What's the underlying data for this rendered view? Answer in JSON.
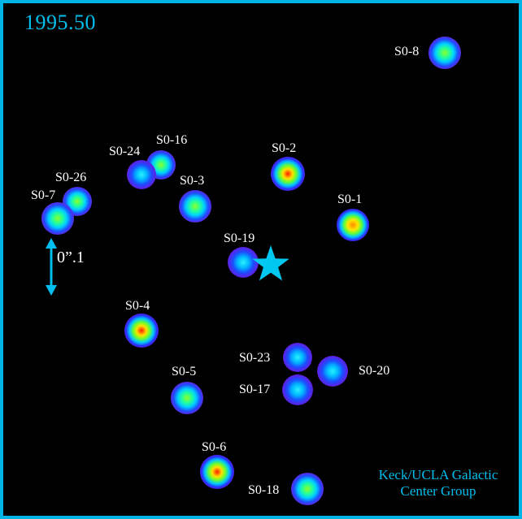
{
  "epoch": "1995.50",
  "credit": {
    "line1": "Keck/UCLA Galactic",
    "line2": "Center Group"
  },
  "scale_bar_label": "0”.1",
  "colors": {
    "frame": "#00b4e6",
    "text_cyan": "#00bfef",
    "label": "#ffffff",
    "black_hole_marker": "#00c8f0"
  },
  "black_hole_marker_icon": "star-icon",
  "stars": [
    {
      "name": "S0-8",
      "palette": "green"
    },
    {
      "name": "S0-16",
      "palette": "green"
    },
    {
      "name": "S0-24",
      "palette": "blue"
    },
    {
      "name": "S0-26",
      "palette": "green"
    },
    {
      "name": "S0-7",
      "palette": "green"
    },
    {
      "name": "S0-3",
      "palette": "green"
    },
    {
      "name": "S0-2",
      "palette": "red"
    },
    {
      "name": "S0-1",
      "palette": "yellow"
    },
    {
      "name": "S0-19",
      "palette": "blue"
    },
    {
      "name": "S0-4",
      "palette": "red"
    },
    {
      "name": "S0-23",
      "palette": "blue"
    },
    {
      "name": "S0-20",
      "palette": "blue"
    },
    {
      "name": "S0-17",
      "palette": "blue"
    },
    {
      "name": "S0-5",
      "palette": "green"
    },
    {
      "name": "S0-6",
      "palette": "red"
    },
    {
      "name": "S0-18",
      "palette": "green"
    }
  ]
}
